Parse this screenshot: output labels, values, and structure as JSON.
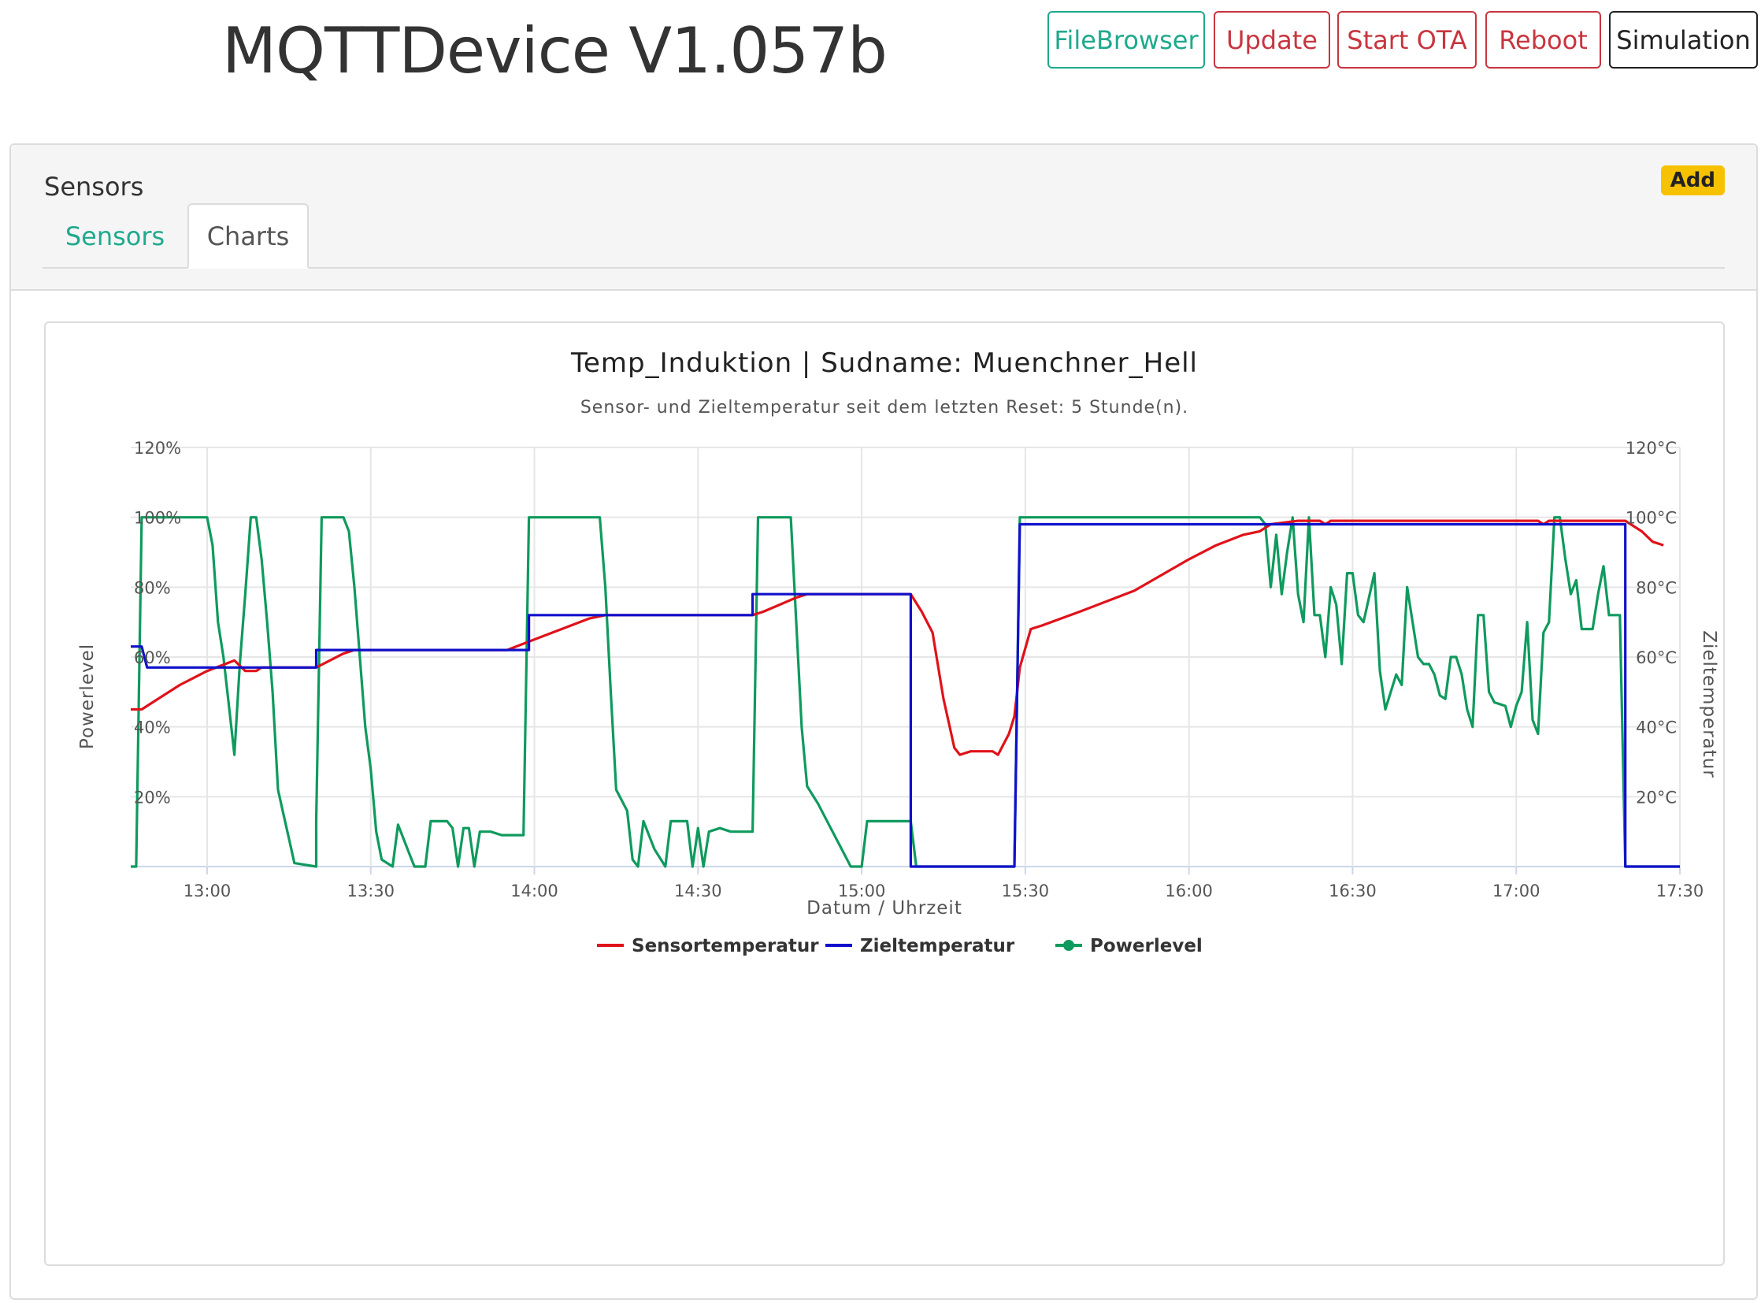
{
  "app": {
    "title": "MQTTDevice V1.057b"
  },
  "toolbar": {
    "filebrowser_label": "FileBrowser",
    "update_label": "Update",
    "start_ota_label": "Start OTA",
    "reboot_label": "Reboot",
    "simulation_label": "Simulation"
  },
  "card": {
    "title": "Sensors",
    "add_label": "Add",
    "tabs": [
      {
        "label": "Sensors"
      },
      {
        "label": "Charts"
      }
    ]
  },
  "colors": {
    "accent": "#20a98d",
    "danger": "#c8353f",
    "badge": "#f6c200"
  },
  "chart_data": {
    "type": "line",
    "title": "Temp_Induktion | Sudname: Muenchner_Hell",
    "subtitle": "Sensor- und Zieltemperatur seit dem letzten Reset: 5 Stunde(n).",
    "xlabel": "Datum / Uhrzeit",
    "ylabel_left": "Powerlevel",
    "ylabel_right": "Zieltemperatur",
    "x_ticks": [
      "13:00",
      "13:30",
      "14:00",
      "14:30",
      "15:00",
      "15:30",
      "16:00",
      "16:30",
      "17:00",
      "17:30"
    ],
    "y_ticks_left": [
      "20%",
      "40%",
      "60%",
      "80%",
      "100%",
      "120%"
    ],
    "y_ticks_right": [
      "20°C",
      "40°C",
      "60°C",
      "80°C",
      "100°C",
      "120°C"
    ],
    "ylim": [
      0,
      120
    ],
    "xlim": [
      "12:46",
      "17:30"
    ],
    "grid": true,
    "legend_position": "bottom",
    "series": [
      {
        "name": "Sensortemperatur",
        "color": "#e0121a",
        "axis": "right",
        "points": [
          [
            "12:46",
            45
          ],
          [
            "12:48",
            45
          ],
          [
            "12:50",
            47
          ],
          [
            "12:55",
            52
          ],
          [
            "13:00",
            56
          ],
          [
            "13:05",
            59
          ],
          [
            "13:07",
            56
          ],
          [
            "13:09",
            56
          ],
          [
            "13:10",
            57
          ],
          [
            "13:20",
            57
          ],
          [
            "13:25",
            61
          ],
          [
            "13:27",
            62
          ],
          [
            "13:55",
            62
          ],
          [
            "14:00",
            65
          ],
          [
            "14:10",
            71
          ],
          [
            "14:13",
            72
          ],
          [
            "14:40",
            72
          ],
          [
            "14:42",
            73
          ],
          [
            "14:48",
            77
          ],
          [
            "14:50",
            78
          ],
          [
            "15:09",
            78
          ],
          [
            "15:11",
            73
          ],
          [
            "15:13",
            67
          ],
          [
            "15:15",
            48
          ],
          [
            "15:17",
            34
          ],
          [
            "15:18",
            32
          ],
          [
            "15:20",
            33
          ],
          [
            "15:22",
            33
          ],
          [
            "15:24",
            33
          ],
          [
            "15:25",
            32
          ],
          [
            "15:27",
            38
          ],
          [
            "15:28",
            43
          ],
          [
            "15:29",
            57
          ],
          [
            "15:31",
            68
          ],
          [
            "15:33",
            69
          ],
          [
            "15:40",
            73
          ],
          [
            "15:50",
            79
          ],
          [
            "16:00",
            88
          ],
          [
            "16:05",
            92
          ],
          [
            "16:10",
            95
          ],
          [
            "16:13",
            96
          ],
          [
            "16:15",
            98
          ],
          [
            "16:20",
            99
          ],
          [
            "16:24",
            99
          ],
          [
            "16:25",
            98
          ],
          [
            "16:26",
            99
          ],
          [
            "17:04",
            99
          ],
          [
            "17:05",
            98
          ],
          [
            "17:06",
            99
          ],
          [
            "17:20",
            99
          ],
          [
            "17:23",
            96
          ],
          [
            "17:25",
            93
          ],
          [
            "17:27",
            92
          ]
        ]
      },
      {
        "name": "Zieltemperatur",
        "color": "#1010cc",
        "axis": "right",
        "points": [
          [
            "12:46",
            63
          ],
          [
            "12:48",
            63
          ],
          [
            "12:49",
            57
          ],
          [
            "13:20",
            57
          ],
          [
            "13:20",
            62
          ],
          [
            "13:59",
            62
          ],
          [
            "13:59",
            72
          ],
          [
            "14:40",
            72
          ],
          [
            "14:40",
            78
          ],
          [
            "15:09",
            78
          ],
          [
            "15:09",
            0
          ],
          [
            "15:28",
            0
          ],
          [
            "15:29",
            98
          ],
          [
            "17:20",
            98
          ],
          [
            "17:20",
            0
          ],
          [
            "17:30",
            0
          ]
        ]
      },
      {
        "name": "Powerlevel",
        "color": "#0f9a5e",
        "axis": "left",
        "points": [
          [
            "12:46",
            0
          ],
          [
            "12:47",
            0
          ],
          [
            "12:48",
            100
          ],
          [
            "13:00",
            100
          ],
          [
            "13:01",
            92
          ],
          [
            "13:02",
            70
          ],
          [
            "13:03",
            60
          ],
          [
            "13:04",
            46
          ],
          [
            "13:05",
            32
          ],
          [
            "13:06",
            58
          ],
          [
            "13:07",
            78
          ],
          [
            "13:08",
            100
          ],
          [
            "13:09",
            100
          ],
          [
            "13:10",
            88
          ],
          [
            "13:11",
            70
          ],
          [
            "13:12",
            50
          ],
          [
            "13:13",
            22
          ],
          [
            "13:14",
            15
          ],
          [
            "13:15",
            8
          ],
          [
            "13:16",
            1
          ],
          [
            "13:20",
            0
          ],
          [
            "13:20",
            13
          ],
          [
            "13:21",
            100
          ],
          [
            "13:25",
            100
          ],
          [
            "13:26",
            96
          ],
          [
            "13:27",
            80
          ],
          [
            "13:28",
            60
          ],
          [
            "13:29",
            40
          ],
          [
            "13:30",
            28
          ],
          [
            "13:31",
            10
          ],
          [
            "13:32",
            2
          ],
          [
            "13:34",
            0
          ],
          [
            "13:35",
            12
          ],
          [
            "13:36",
            8
          ],
          [
            "13:37",
            4
          ],
          [
            "13:38",
            0
          ],
          [
            "13:40",
            0
          ],
          [
            "13:41",
            13
          ],
          [
            "13:44",
            13
          ],
          [
            "13:45",
            11
          ],
          [
            "13:46",
            0
          ],
          [
            "13:47",
            11
          ],
          [
            "13:48",
            11
          ],
          [
            "13:49",
            0
          ],
          [
            "13:50",
            10
          ],
          [
            "13:52",
            10
          ],
          [
            "13:54",
            9
          ],
          [
            "13:58",
            9
          ],
          [
            "13:59",
            100
          ],
          [
            "14:12",
            100
          ],
          [
            "14:13",
            80
          ],
          [
            "14:14",
            50
          ],
          [
            "14:15",
            22
          ],
          [
            "14:17",
            16
          ],
          [
            "14:18",
            2
          ],
          [
            "14:19",
            0
          ],
          [
            "14:20",
            13
          ],
          [
            "14:21",
            9
          ],
          [
            "14:22",
            5
          ],
          [
            "14:24",
            0
          ],
          [
            "14:25",
            13
          ],
          [
            "14:28",
            13
          ],
          [
            "14:29",
            0
          ],
          [
            "14:30",
            11
          ],
          [
            "14:31",
            0
          ],
          [
            "14:32",
            10
          ],
          [
            "14:34",
            11
          ],
          [
            "14:36",
            10
          ],
          [
            "14:40",
            10
          ],
          [
            "14:41",
            100
          ],
          [
            "14:47",
            100
          ],
          [
            "14:48",
            70
          ],
          [
            "14:49",
            40
          ],
          [
            "14:50",
            23
          ],
          [
            "14:52",
            18
          ],
          [
            "14:54",
            12
          ],
          [
            "14:56",
            6
          ],
          [
            "14:58",
            0
          ],
          [
            "15:00",
            0
          ],
          [
            "15:01",
            13
          ],
          [
            "15:09",
            13
          ],
          [
            "15:10",
            0
          ],
          [
            "15:28",
            0
          ],
          [
            "15:29",
            100
          ],
          [
            "16:13",
            100
          ],
          [
            "16:14",
            98
          ],
          [
            "16:15",
            80
          ],
          [
            "16:16",
            95
          ],
          [
            "16:17",
            78
          ],
          [
            "16:18",
            90
          ],
          [
            "16:19",
            100
          ],
          [
            "16:20",
            78
          ],
          [
            "16:21",
            70
          ],
          [
            "16:22",
            100
          ],
          [
            "16:23",
            72
          ],
          [
            "16:24",
            72
          ],
          [
            "16:25",
            60
          ],
          [
            "16:26",
            80
          ],
          [
            "16:27",
            75
          ],
          [
            "16:28",
            58
          ],
          [
            "16:29",
            84
          ],
          [
            "16:30",
            84
          ],
          [
            "16:31",
            72
          ],
          [
            "16:32",
            70
          ],
          [
            "16:34",
            84
          ],
          [
            "16:35",
            56
          ],
          [
            "16:36",
            45
          ],
          [
            "16:38",
            55
          ],
          [
            "16:39",
            52
          ],
          [
            "16:40",
            80
          ],
          [
            "16:42",
            60
          ],
          [
            "16:43",
            58
          ],
          [
            "16:44",
            58
          ],
          [
            "16:45",
            55
          ],
          [
            "16:46",
            49
          ],
          [
            "16:47",
            48
          ],
          [
            "16:48",
            60
          ],
          [
            "16:49",
            60
          ],
          [
            "16:50",
            55
          ],
          [
            "16:51",
            45
          ],
          [
            "16:52",
            40
          ],
          [
            "16:53",
            72
          ],
          [
            "16:54",
            72
          ],
          [
            "16:55",
            50
          ],
          [
            "16:56",
            47
          ],
          [
            "16:58",
            46
          ],
          [
            "16:59",
            40
          ],
          [
            "17:00",
            46
          ],
          [
            "17:01",
            50
          ],
          [
            "17:02",
            70
          ],
          [
            "17:03",
            42
          ],
          [
            "17:04",
            38
          ],
          [
            "17:05",
            67
          ],
          [
            "17:06",
            70
          ],
          [
            "17:07",
            100
          ],
          [
            "17:08",
            100
          ],
          [
            "17:09",
            88
          ],
          [
            "17:10",
            78
          ],
          [
            "17:11",
            82
          ],
          [
            "17:12",
            68
          ],
          [
            "17:14",
            68
          ],
          [
            "17:15",
            78
          ],
          [
            "17:16",
            86
          ],
          [
            "17:17",
            72
          ],
          [
            "17:19",
            72
          ],
          [
            "17:20",
            0
          ],
          [
            "17:30",
            0
          ]
        ]
      }
    ]
  }
}
